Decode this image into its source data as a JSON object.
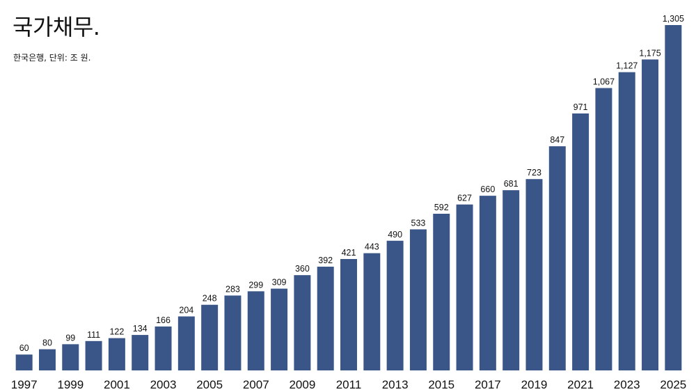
{
  "chart_data": {
    "type": "bar",
    "title": "국가채무.",
    "subtitle": "한국은행, 단위: 조 원.",
    "categories": [
      "1997",
      "1998",
      "1999",
      "2000",
      "2001",
      "2002",
      "2003",
      "2004",
      "2005",
      "2006",
      "2007",
      "2008",
      "2009",
      "2010",
      "2011",
      "2012",
      "2013",
      "2014",
      "2015",
      "2016",
      "2017",
      "2018",
      "2019",
      "2020",
      "2021",
      "2022",
      "2023",
      "2024",
      "2025"
    ],
    "values": [
      60,
      80,
      99,
      111,
      122,
      134,
      166,
      204,
      248,
      283,
      299,
      309,
      360,
      392,
      421,
      443,
      490,
      533,
      592,
      627,
      660,
      681,
      723,
      847,
      971,
      1067,
      1127,
      1175,
      1305
    ],
    "value_labels": [
      "60",
      "80",
      "99",
      "111",
      "122",
      "134",
      "166",
      "204",
      "248",
      "283",
      "299",
      "309",
      "360",
      "392",
      "421",
      "443",
      "490",
      "533",
      "592",
      "627",
      "660",
      "681",
      "723",
      "847",
      "971",
      "1,067",
      "1,127",
      "1,175",
      "1,305"
    ],
    "x_tick_labels": [
      "1997",
      "1999",
      "2001",
      "2003",
      "2005",
      "2007",
      "2009",
      "2011",
      "2013",
      "2015",
      "2017",
      "2019",
      "2021",
      "2023",
      "2025"
    ],
    "xlabel": "",
    "ylabel": "",
    "ylim": [
      0,
      1305
    ],
    "grid": false,
    "legend": "none",
    "bar_color": "#3a5689"
  }
}
